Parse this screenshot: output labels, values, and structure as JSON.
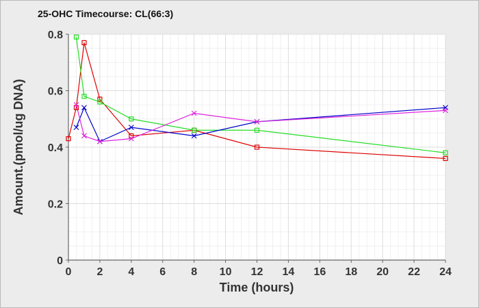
{
  "chart_data": {
    "type": "line",
    "title": "25-OHC Timecourse: CL(66:3)",
    "xlabel": "Time (hours)",
    "ylabel": "Amount.(pmol/ug DNA)",
    "xlim": [
      0,
      24
    ],
    "ylim": [
      0,
      0.8
    ],
    "xticks": [
      "0",
      "2",
      "4",
      "6",
      "8",
      "10",
      "12",
      "14",
      "16",
      "18",
      "20",
      "22",
      "24"
    ],
    "yticks": [
      "0",
      "0.2",
      "0.4",
      "0.6",
      "0.8"
    ],
    "grid": true,
    "legend": "none",
    "series": [
      {
        "color": "#dd0000",
        "marker": "square",
        "points": [
          [
            0,
            0.43
          ],
          [
            0.5,
            0.54
          ],
          [
            1,
            0.77
          ],
          [
            2,
            0.57
          ],
          [
            4,
            0.44
          ],
          [
            8,
            0.46
          ],
          [
            12,
            0.4
          ],
          [
            24,
            0.36
          ]
        ]
      },
      {
        "color": "#22dd22",
        "marker": "square",
        "points": [
          [
            0.5,
            0.79
          ],
          [
            1,
            0.58
          ],
          [
            2,
            0.56
          ],
          [
            4,
            0.5
          ],
          [
            8,
            0.46
          ],
          [
            12,
            0.46
          ],
          [
            24,
            0.38
          ]
        ]
      },
      {
        "color": "#0000cc",
        "marker": "x",
        "points": [
          [
            0.5,
            0.47
          ],
          [
            1,
            0.54
          ],
          [
            2,
            0.42
          ],
          [
            4,
            0.47
          ],
          [
            8,
            0.44
          ],
          [
            12,
            0.49
          ],
          [
            24,
            0.54
          ]
        ]
      },
      {
        "color": "#dd22dd",
        "marker": "x",
        "points": [
          [
            0.5,
            0.55
          ],
          [
            1,
            0.44
          ],
          [
            2,
            0.42
          ],
          [
            4,
            0.43
          ],
          [
            8,
            0.52
          ],
          [
            12,
            0.49
          ],
          [
            24,
            0.53
          ]
        ]
      }
    ]
  }
}
